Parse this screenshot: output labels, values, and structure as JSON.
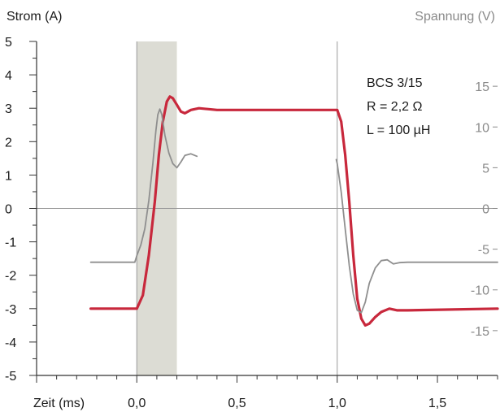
{
  "chart_data": {
    "type": "line",
    "ylabel_left": "Strom (A)",
    "ylabel_right": "Spannung (V)",
    "xlabel": "Zeit (ms)",
    "xlim": [
      -0.5,
      1.8
    ],
    "ylim_left": [
      -5,
      5
    ],
    "ylim_right": [
      -20.5,
      20.5
    ],
    "x_ticks": [
      "0,0",
      "0,5",
      "1,0",
      "1,5"
    ],
    "x_tick_values": [
      0.0,
      0.5,
      1.0,
      1.5
    ],
    "y_ticks_left": [
      "5",
      "4",
      "3",
      "2",
      "1",
      "0",
      "-1",
      "-2",
      "-3",
      "-4",
      "-5"
    ],
    "y_tick_values_left": [
      5,
      4,
      3,
      2,
      1,
      0,
      -1,
      -2,
      -3,
      -4,
      -5
    ],
    "y_ticks_right": [
      "15",
      "10",
      "5",
      "0",
      "-5",
      "-10",
      "-15"
    ],
    "y_tick_values_right": [
      15,
      10,
      5,
      0,
      -5,
      -10,
      -15
    ],
    "shaded_region": [
      0.0,
      0.2
    ],
    "vertical_lines": [
      0.0,
      1.0
    ],
    "annotation": [
      "BCS 3/15",
      "R = 2,2 Ω",
      "L = 100 µH"
    ],
    "grid": false,
    "colors": {
      "current": "#c8283c",
      "voltage": "#8f8f8f",
      "shade": "#dcdcd4",
      "axis": "#333333"
    },
    "series": [
      {
        "axis": "left",
        "line": "thick",
        "color": "#c8283c",
        "points": [
          [
            -0.23,
            -3.0
          ],
          [
            0.0,
            -3.0
          ],
          [
            0.03,
            -2.6
          ],
          [
            0.06,
            -1.4
          ],
          [
            0.09,
            0.2
          ],
          [
            0.11,
            1.6
          ],
          [
            0.13,
            2.6
          ],
          [
            0.15,
            3.2
          ],
          [
            0.165,
            3.35
          ],
          [
            0.18,
            3.3
          ],
          [
            0.2,
            3.1
          ],
          [
            0.22,
            2.9
          ],
          [
            0.24,
            2.85
          ],
          [
            0.27,
            2.95
          ],
          [
            0.31,
            3.0
          ],
          [
            0.4,
            2.95
          ],
          [
            1.0,
            2.95
          ],
          [
            1.02,
            2.6
          ],
          [
            1.04,
            1.6
          ],
          [
            1.06,
            0.2
          ],
          [
            1.08,
            -1.4
          ],
          [
            1.1,
            -2.7
          ],
          [
            1.12,
            -3.3
          ],
          [
            1.14,
            -3.5
          ],
          [
            1.16,
            -3.45
          ],
          [
            1.19,
            -3.25
          ],
          [
            1.22,
            -3.1
          ],
          [
            1.26,
            -3.0
          ],
          [
            1.3,
            -3.05
          ],
          [
            1.35,
            -3.05
          ],
          [
            1.8,
            -3.0
          ]
        ]
      },
      {
        "axis": "right",
        "line": "thin",
        "color": "#8f8f8f",
        "segments": [
          [
            [
              -0.23,
              -6.6
            ],
            [
              -0.01,
              -6.6
            ],
            [
              0.0,
              -5.8
            ],
            [
              0.02,
              -4.5
            ],
            [
              0.04,
              -2.5
            ],
            [
              0.06,
              1.0
            ],
            [
              0.08,
              5.5
            ],
            [
              0.095,
              9.5
            ],
            [
              0.105,
              11.5
            ],
            [
              0.115,
              12.2
            ],
            [
              0.125,
              11.5
            ],
            [
              0.14,
              9.0
            ],
            [
              0.16,
              6.8
            ],
            [
              0.18,
              5.5
            ],
            [
              0.2,
              5.0
            ],
            [
              0.22,
              5.7
            ],
            [
              0.24,
              6.5
            ],
            [
              0.27,
              6.7
            ],
            [
              0.3,
              6.4
            ]
          ],
          [
            [
              0.995,
              6.0
            ],
            [
              1.0,
              5.5
            ],
            [
              1.02,
              2.0
            ],
            [
              1.04,
              -2.5
            ],
            [
              1.06,
              -7.0
            ],
            [
              1.08,
              -10.5
            ],
            [
              1.1,
              -12.5
            ],
            [
              1.12,
              -12.8
            ],
            [
              1.14,
              -11.5
            ],
            [
              1.16,
              -9.2
            ],
            [
              1.19,
              -7.3
            ],
            [
              1.22,
              -6.4
            ],
            [
              1.25,
              -6.3
            ],
            [
              1.28,
              -6.8
            ],
            [
              1.31,
              -6.65
            ],
            [
              1.35,
              -6.6
            ],
            [
              1.8,
              -6.6
            ]
          ]
        ]
      }
    ]
  }
}
